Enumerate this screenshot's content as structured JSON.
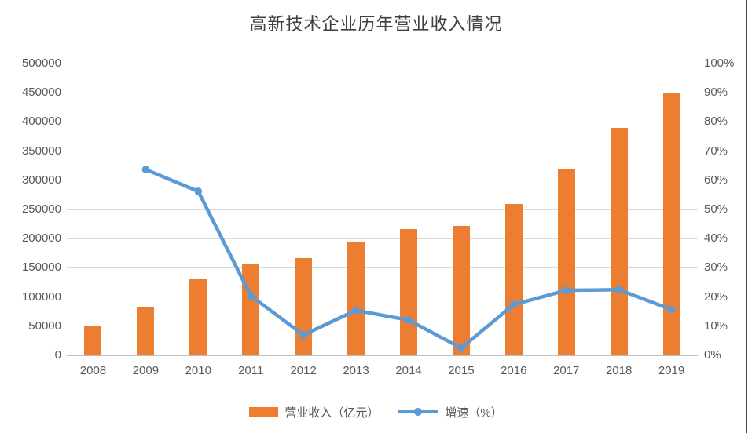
{
  "title": "高新技术企业历年营业收入情况",
  "colors": {
    "bar": "#ED7D31",
    "line": "#5B9BD5",
    "grid": "#D9D9D9",
    "zero_line": "#BFBFBF",
    "axis_text": "#595959",
    "title_text": "#404040",
    "right_edge_border": "#4A4A4A",
    "background": "#FFFFFF"
  },
  "chart_data": {
    "type": "bar",
    "subtype": "combo-bar-line-dual-axis",
    "title": "高新技术企业历年营业收入情况",
    "categories": [
      "2008",
      "2009",
      "2010",
      "2011",
      "2012",
      "2013",
      "2014",
      "2015",
      "2016",
      "2017",
      "2018",
      "2019"
    ],
    "series": [
      {
        "name": "营业收入（亿元）",
        "type": "bar",
        "axis": "left",
        "color": "#ED7D31",
        "values": [
          51000,
          83000,
          130000,
          156000,
          167000,
          194000,
          217000,
          222000,
          260000,
          318000,
          390000,
          450000
        ]
      },
      {
        "name": "增速（%）",
        "type": "line",
        "axis": "right",
        "color": "#5B9BD5",
        "values": [
          null,
          63.7,
          56.2,
          20.4,
          7.0,
          15.4,
          12.1,
          2.5,
          17.4,
          22.3,
          22.5,
          15.7
        ]
      }
    ],
    "left_axis": {
      "min": 0,
      "max": 500000,
      "step": 50000,
      "tick_labels_top_to_bottom": [
        "500000",
        "450000",
        "400000",
        "350000",
        "300000",
        "250000",
        "200000",
        "150000",
        "100000",
        "50000",
        "0"
      ]
    },
    "right_axis": {
      "min": 0,
      "max": 100,
      "step": 10,
      "tick_labels_top_to_bottom": [
        "100%",
        "90%",
        "80%",
        "70%",
        "60%",
        "50%",
        "40%",
        "30%",
        "20%",
        "10%",
        "0%"
      ]
    },
    "grid": "horizontal",
    "legend_position": "bottom",
    "legend": [
      "营业收入（亿元）",
      "增速（%）"
    ]
  }
}
